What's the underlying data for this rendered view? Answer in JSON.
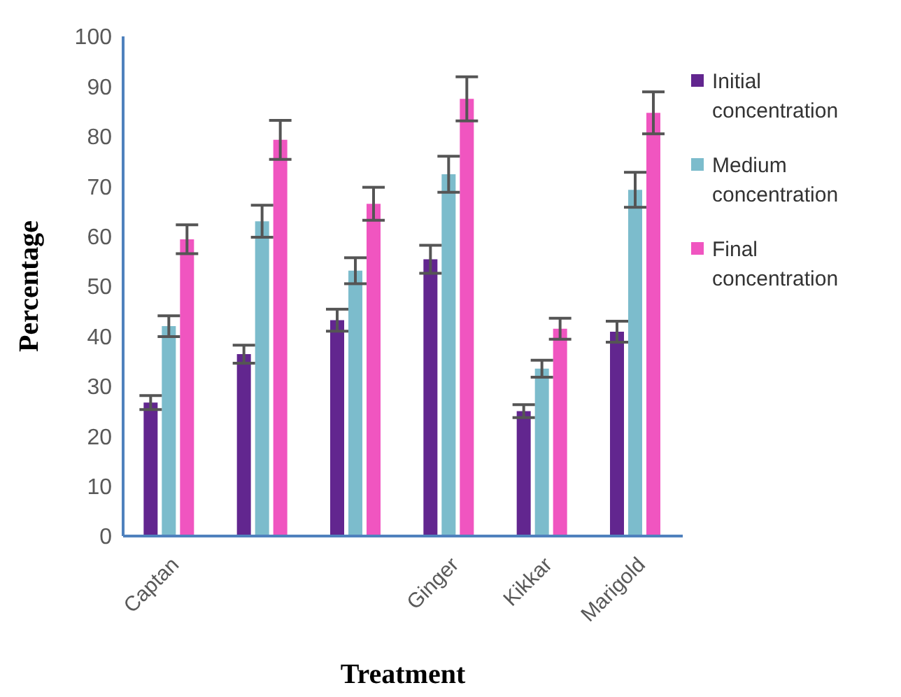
{
  "chart_data": {
    "type": "bar",
    "xlabel": "Treatment",
    "ylabel": "Percentage",
    "categories": [
      "Captan",
      null,
      null,
      "Ginger",
      "Kikkar",
      "Marigold"
    ],
    "series": [
      {
        "name": "Initial concentration",
        "color": "#62268f",
        "values": [
          26.7,
          36.4,
          43.2,
          55.4,
          25.0,
          40.9
        ],
        "errors": [
          1.4,
          1.8,
          2.2,
          2.8,
          1.3,
          2.1
        ]
      },
      {
        "name": "Medium concentration",
        "color": "#7cbccc",
        "values": [
          42.0,
          63.0,
          53.1,
          72.4,
          33.5,
          69.3
        ],
        "errors": [
          2.1,
          3.2,
          2.6,
          3.6,
          1.7,
          3.5
        ]
      },
      {
        "name": "Final concentration",
        "color": "#f055c0",
        "values": [
          59.4,
          79.3,
          66.5,
          87.5,
          41.5,
          84.7
        ],
        "errors": [
          2.9,
          3.9,
          3.3,
          4.4,
          2.1,
          4.2
        ]
      }
    ],
    "ylim": [
      0,
      100
    ],
    "yticks": [
      0,
      10,
      20,
      30,
      40,
      50,
      60,
      70,
      80,
      90,
      100
    ],
    "grid": false,
    "legend": "right"
  }
}
